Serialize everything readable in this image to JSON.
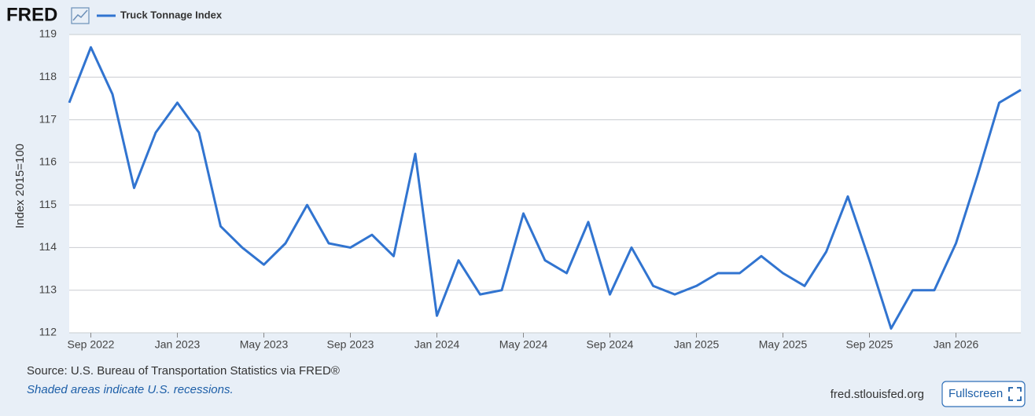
{
  "header": {
    "logo": "FRED"
  },
  "chart_data": {
    "type": "line",
    "y_label": "Index 2015=100",
    "x": [
      "2022-08",
      "2022-09",
      "2022-10",
      "2022-11",
      "2022-12",
      "2023-01",
      "2023-02",
      "2023-03",
      "2023-04",
      "2023-05",
      "2023-06",
      "2023-07",
      "2023-08",
      "2023-09",
      "2023-10",
      "2023-11",
      "2023-12",
      "2024-01",
      "2024-02",
      "2024-03",
      "2024-04",
      "2024-05",
      "2024-06",
      "2024-07",
      "2024-08",
      "2024-09",
      "2024-10",
      "2024-11",
      "2024-12",
      "2025-01",
      "2025-02",
      "2025-03",
      "2025-04",
      "2025-05",
      "2025-06",
      "2025-07",
      "2025-08",
      "2025-09",
      "2025-10",
      "2025-11",
      "2025-12",
      "2026-01",
      "2026-02",
      "2026-03",
      "2026-04"
    ],
    "series": [
      {
        "name": "Truck Tonnage Index",
        "color": "#3174d0",
        "values": [
          117.4,
          118.7,
          117.6,
          115.4,
          116.7,
          117.4,
          116.7,
          114.5,
          114.0,
          113.6,
          114.1,
          115.0,
          114.1,
          114.0,
          114.3,
          113.8,
          116.2,
          112.4,
          113.7,
          112.9,
          113.0,
          114.8,
          113.7,
          113.4,
          114.6,
          112.9,
          114.0,
          113.1,
          112.9,
          113.1,
          113.4,
          113.4,
          113.8,
          113.4,
          113.1,
          113.9,
          115.2,
          113.7,
          112.1,
          113.0,
          113.0,
          114.1,
          115.7,
          117.4,
          117.7
        ]
      }
    ],
    "xticks": [
      {
        "value": "2022-09",
        "label": "Sep 2022"
      },
      {
        "value": "2023-01",
        "label": "Jan 2023"
      },
      {
        "value": "2023-05",
        "label": "May 2023"
      },
      {
        "value": "2023-09",
        "label": "Sep 2023"
      },
      {
        "value": "2024-01",
        "label": "Jan 2024"
      },
      {
        "value": "2024-05",
        "label": "May 2024"
      },
      {
        "value": "2024-09",
        "label": "Sep 2024"
      },
      {
        "value": "2025-01",
        "label": "Jan 2025"
      },
      {
        "value": "2025-05",
        "label": "May 2025"
      },
      {
        "value": "2025-09",
        "label": "Sep 2025"
      },
      {
        "value": "2026-01",
        "label": "Jan 2026"
      }
    ],
    "ylim": [
      112,
      119
    ],
    "yticks": [
      112,
      113,
      114,
      115,
      116,
      117,
      118,
      119
    ],
    "grid": true
  },
  "footer": {
    "source": "Source: U.S. Bureau of Transportation Statistics via FRED®",
    "note": "Shaded areas indicate U.S. recessions.",
    "site": "fred.stlouisfed.org",
    "button": "Fullscreen"
  }
}
